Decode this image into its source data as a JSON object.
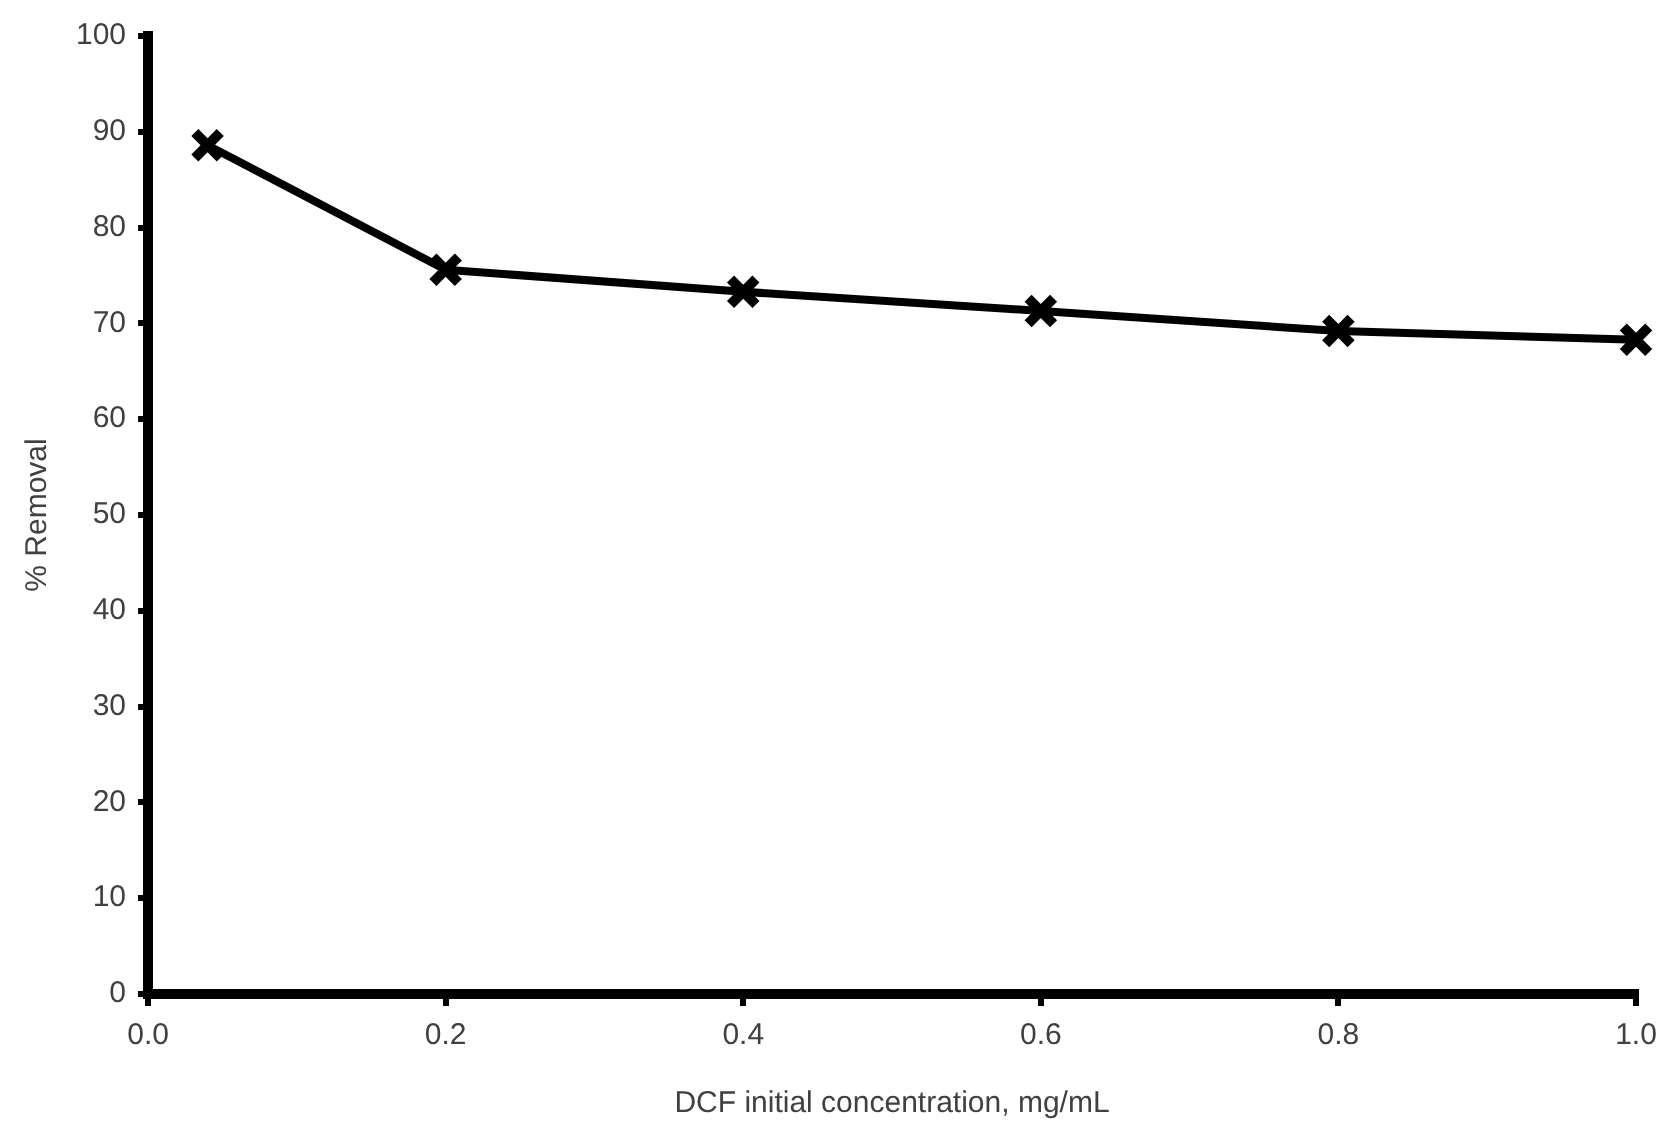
{
  "chart_data": {
    "type": "line",
    "xlabel": "DCF initial concentration, mg/mL",
    "ylabel": "% Removal",
    "x": [
      0.04,
      0.2,
      0.4,
      0.6,
      0.8,
      1.0
    ],
    "series": [
      {
        "color": "#000000",
        "values": [
          88.6,
          75.6,
          73.3,
          71.3,
          69.2,
          68.3
        ]
      }
    ],
    "xlim": [
      0,
      1
    ],
    "xticks": [
      {
        "value": 0,
        "label": "0.0"
      },
      {
        "value": 0.2,
        "label": "0.2"
      },
      {
        "value": 0.4,
        "label": "0.4"
      },
      {
        "value": 0.6,
        "label": "0.6"
      },
      {
        "value": 0.8,
        "label": "0.8"
      },
      {
        "value": 1,
        "label": "1.0"
      }
    ],
    "ylim": [
      0,
      100
    ],
    "yticks": [
      0,
      10,
      20,
      30,
      40,
      50,
      60,
      70,
      80,
      90,
      100
    ],
    "grid": false,
    "legend": false,
    "marker": "cross",
    "line_style": "solid"
  }
}
